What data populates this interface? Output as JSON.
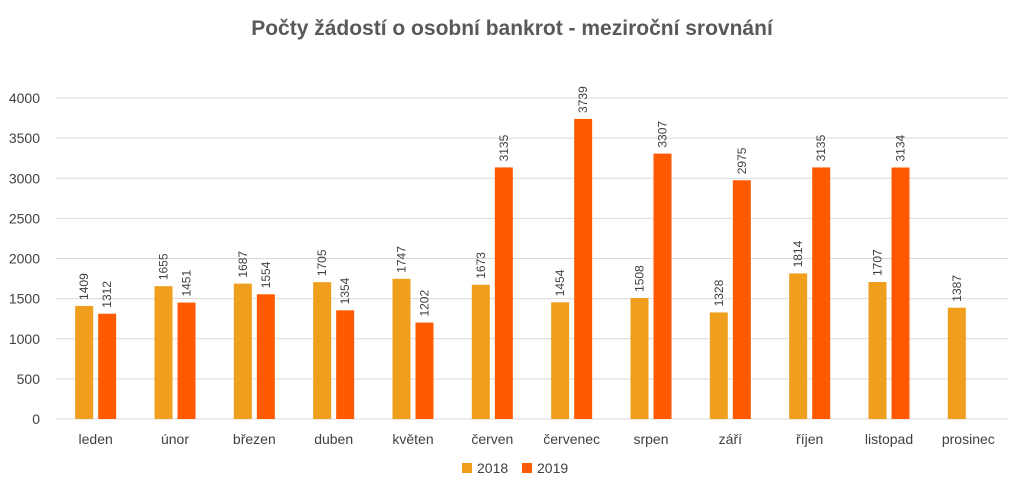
{
  "chart_data": {
    "type": "bar",
    "title": "Počty žádostí o osobní bankrot - meziroční srovnání",
    "xlabel": "",
    "ylabel": "",
    "ylim": [
      0,
      4000
    ],
    "yticks": [
      0,
      500,
      1000,
      1500,
      2000,
      2500,
      3000,
      3500,
      4000
    ],
    "grid": true,
    "legend_position": "bottom",
    "categories": [
      "leden",
      "únor",
      "březen",
      "duben",
      "květen",
      "červen",
      "červenec",
      "srpen",
      "září",
      "říjen",
      "listopad",
      "prosinec"
    ],
    "series": [
      {
        "name": "2018",
        "color": "#f09e1e",
        "values": [
          1409,
          1655,
          1687,
          1705,
          1747,
          1673,
          1454,
          1508,
          1328,
          1814,
          1707,
          1387
        ]
      },
      {
        "name": "2019",
        "color": "#ff5a00",
        "values": [
          1312,
          1451,
          1554,
          1354,
          1202,
          3135,
          3739,
          3307,
          2975,
          3135,
          3134,
          null
        ]
      }
    ]
  }
}
